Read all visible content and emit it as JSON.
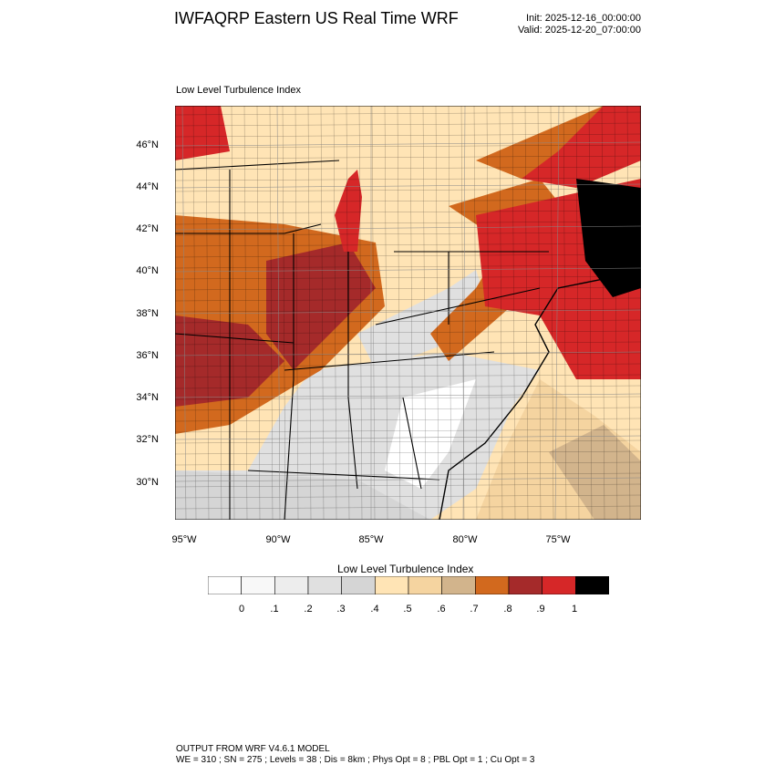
{
  "header": {
    "title": "IWFAQRP Eastern US Real Time WRF",
    "init": "Init: 2025-12-16_00:00:00",
    "valid": "Valid: 2025-12-20_07:00:00"
  },
  "map": {
    "field_name": "Low Level Turbulence Index",
    "lat_labels": [
      "46°N",
      "44°N",
      "42°N",
      "40°N",
      "38°N",
      "36°N",
      "34°N",
      "32°N",
      "30°N"
    ],
    "lon_labels": [
      "95°W",
      "90°W",
      "85°W",
      "80°W",
      "75°W"
    ]
  },
  "colorbar": {
    "title": "Low Level Turbulence Index",
    "colors": [
      "#ffffff",
      "#f8f8f8",
      "#ededed",
      "#e0e0e0",
      "#d5d5d5",
      "#ffe4b5",
      "#f5d4a0",
      "#d2b48c",
      "#d2691e",
      "#a52a2a",
      "#d62728",
      "#000000"
    ],
    "labels": [
      "0",
      ".1",
      ".2",
      ".3",
      ".4",
      ".5",
      ".6",
      ".7",
      ".8",
      ".9",
      "1"
    ]
  },
  "footer": {
    "line1": "OUTPUT FROM WRF V4.6.1 MODEL",
    "line2": "WE = 310 ; SN = 275 ; Levels = 38 ; Dis = 8km ; Phys Opt = 8 ; PBL Opt = 1 ; Cu Opt = 3"
  }
}
